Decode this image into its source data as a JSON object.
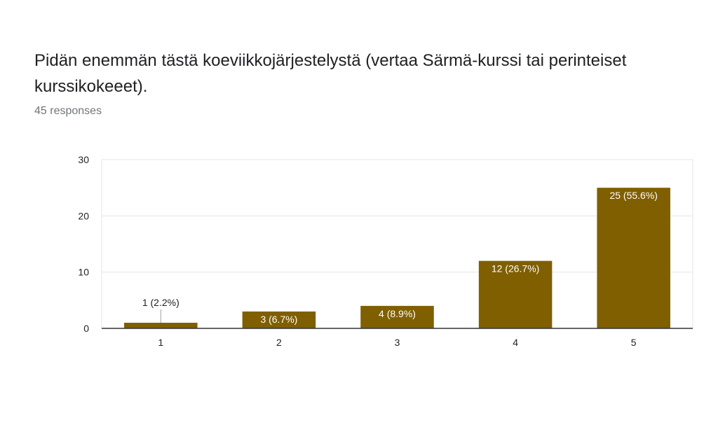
{
  "question": {
    "title": "Pidän enemmän tästä koeviikkojärjestelystä (vertaa Särmä-kurssi tai perinteiset kurssikokeeet).",
    "responses": "45 responses"
  },
  "colors": {
    "bar": "#7f5f00",
    "grid": "#e6e6e6",
    "axis": "#333333",
    "label_inside": "#ffffff",
    "label_outside": "#222222"
  },
  "chart_data": {
    "type": "bar",
    "title": "",
    "xlabel": "",
    "ylabel": "",
    "categories": [
      "1",
      "2",
      "3",
      "4",
      "5"
    ],
    "values": [
      1,
      3,
      4,
      12,
      25
    ],
    "data_labels": [
      "1 (2.2%)",
      "3 (6.7%)",
      "4 (8.9%)",
      "12 (26.7%)",
      "25 (55.6%)"
    ],
    "ylim": [
      0,
      30
    ],
    "yticks": [
      0,
      10,
      20,
      30
    ],
    "grid": true,
    "legend": false
  }
}
